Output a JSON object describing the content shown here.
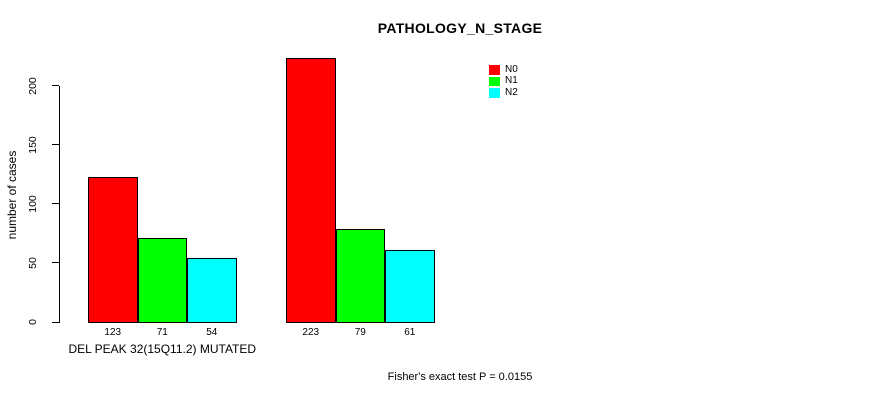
{
  "chart_data": {
    "type": "bar",
    "title": "PATHOLOGY_N_STAGE",
    "ylabel": "number of cases",
    "footnote": "Fisher's exact test P = 0.0155",
    "yticks": [
      0,
      50,
      100,
      150,
      200
    ],
    "ylim": [
      0,
      230
    ],
    "grid": false,
    "legend_position": "top-right-inside",
    "categories": [
      "DEL PEAK 32(15Q11.2) MUTATED",
      ""
    ],
    "series": [
      {
        "name": "N0",
        "color": "#FF0000",
        "values": [
          123,
          223
        ]
      },
      {
        "name": "N1",
        "color": "#00FF00",
        "values": [
          71,
          79
        ]
      },
      {
        "name": "N2",
        "color": "#00FFFF",
        "values": [
          54,
          61
        ]
      }
    ]
  }
}
